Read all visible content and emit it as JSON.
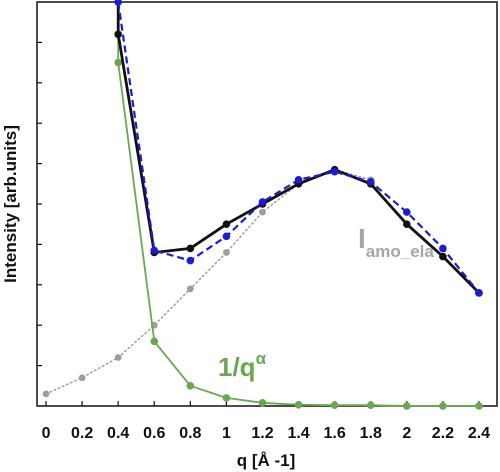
{
  "chart_data": {
    "type": "line",
    "xlabel": "q [Å -1]",
    "ylabel": "Intensity [arb.units]",
    "xlim": [
      -0.05,
      2.5
    ],
    "ylim": [
      0,
      10
    ],
    "x_ticks": [
      "0",
      "0.2",
      "0.4",
      "0.6",
      "0.8",
      "1",
      "1.2",
      "1.4",
      "1.6",
      "1.8",
      "2",
      "2.2",
      "2.4"
    ],
    "y_ticks_labeled": false,
    "grid": false,
    "legend": "none",
    "colors": {
      "black": "#111111",
      "blue": "#1c1cd0",
      "green": "#6aa84f",
      "gray": "#9e9e9e"
    },
    "annotations": {
      "amo_main": "I",
      "amo_sub": "amo_ela",
      "inv_main": "1/q",
      "inv_sup": "α"
    },
    "series": [
      {
        "color": "black",
        "style": "solid",
        "x": [
          0.4,
          0.6,
          0.8,
          1.0,
          1.2,
          1.4,
          1.6,
          1.8,
          2.0,
          2.2,
          2.4
        ],
        "y": [
          9.2,
          3.8,
          3.9,
          4.5,
          5.0,
          5.5,
          5.85,
          5.5,
          4.5,
          3.7,
          2.8
        ],
        "rise_to_top": true
      },
      {
        "color": "blue",
        "style": "dashed",
        "x": [
          0.4,
          0.6,
          0.8,
          1.0,
          1.2,
          1.4,
          1.6,
          1.8,
          2.0,
          2.2,
          2.4
        ],
        "y": [
          10.0,
          3.85,
          3.6,
          4.2,
          5.05,
          5.6,
          5.8,
          5.55,
          4.8,
          3.9,
          2.8
        ],
        "rise_to_top": true
      },
      {
        "color": "green",
        "style": "solid",
        "x": [
          0.4,
          0.6,
          0.8,
          1.0,
          1.2,
          1.4,
          1.6,
          1.8,
          2.0,
          2.2,
          2.4
        ],
        "y": [
          8.5,
          1.6,
          0.5,
          0.2,
          0.08,
          0.03,
          0.02,
          0.02,
          0.0,
          0.0,
          0.0
        ],
        "rise_to_top": true
      },
      {
        "color": "gray",
        "style": "dotted",
        "x": [
          0.0,
          0.2,
          0.4,
          0.6,
          0.8,
          1.0,
          1.2,
          1.4,
          1.6,
          1.8
        ],
        "y": [
          0.3,
          0.7,
          1.2,
          2.0,
          2.9,
          3.8,
          4.8,
          5.5,
          5.85,
          5.6
        ],
        "rise_to_top": false
      }
    ]
  }
}
